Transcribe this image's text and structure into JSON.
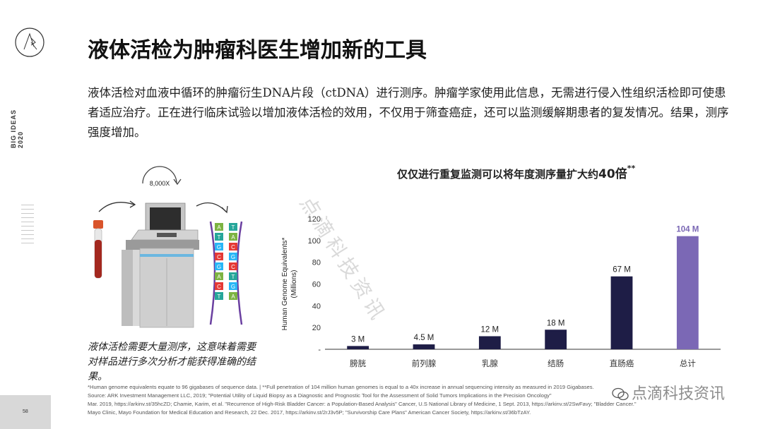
{
  "rail": {
    "vertical_label_line1": "BIG IDEAS",
    "vertical_label_line2": "2020",
    "page_number": "58"
  },
  "title": "液体活检为肿瘤科医生增加新的工具",
  "intro": "液体活检对血液中循环的肿瘤衍生DNA片段（ctDNA）进行测序。肿瘤学家使用此信息，无需进行侵入性组织活检即可使患者适应治疗。正在进行临床试验以增加液体活检的效用，不仅用于筛查癌症，还可以监测缓解期患者的复发情况。结果，测序强度增加。",
  "illustration": {
    "multiplier_label": "8,000X",
    "dna_pairs": [
      [
        "A",
        "T"
      ],
      [
        "T",
        "A"
      ],
      [
        "G",
        "C"
      ],
      [
        "C",
        "G"
      ],
      [
        "G",
        "C"
      ],
      [
        "A",
        "T"
      ],
      [
        "C",
        "G"
      ],
      [
        "T",
        "A"
      ]
    ]
  },
  "caption": "液体活检需要大量测序，这意味着需要对样品进行多次分析才能获得准确的结果。",
  "chart_title_prefix": "仅仅进行重复监测可以将年度测序量扩大约",
  "chart_title_emph": "40倍",
  "chart_title_suffix": "**",
  "chart_data": {
    "type": "bar",
    "title": "仅仅进行重复监测可以将年度测序量扩大约40倍**",
    "ylabel": "Human Genome Equivalents* (Millions)",
    "ylim": [
      0,
      120
    ],
    "yticks": [
      "-",
      "20",
      "40",
      "60",
      "80",
      "100",
      "120"
    ],
    "categories": [
      "膀胱",
      "前列腺",
      "乳腺",
      "结肠",
      "直肠癌",
      "总计"
    ],
    "values": [
      3,
      4.5,
      12,
      18,
      67,
      104
    ],
    "data_labels": [
      "3 M",
      "4.5 M",
      "12 M",
      "18 M",
      "67 M",
      "104 M"
    ],
    "colors": [
      "#1e1d46",
      "#1e1d46",
      "#1e1d46",
      "#1e1d46",
      "#1e1d46",
      "#7b68b5"
    ],
    "grid": false
  },
  "watermark_diagonal": "点滴科技资讯",
  "watermark_corner": "点滴科技资讯",
  "footnotes": [
    "*Human genome equivalents equate to 96 gigabases of sequence data. | **Full penetration of 104 million human genomes is equal to a 40x increase in annual sequencing intensity as measured in 2019 Gigabases.",
    "Source: ARK Investment Management LLC, 2019; \"Potential Utility of Liquid Biopsy as a Diagnostic and Prognostic Tool for the Assessment of Solid Tumors Implications in the Precision Oncology\"",
    "Mar. 2019, https://arkinv.st/35hcZD; Chamie, Karim, et al. \"Recurrence of High-Risk Bladder Cancer: a Population-Based Analysis\" Cancer, U.S National Library of Medicine, 1 Sept. 2013, https://arkinv.st/2SwFavy; \"Bladder Cancer.\"",
    "Mayo Clinic, Mayo Foundation for Medical Education and Research, 22 Dec. 2017, https://arkinv.st/2rJ3v5P; \"Survivorship Care Plans\" American Cancer Society, https://arkinv.st/36bTzAY."
  ]
}
